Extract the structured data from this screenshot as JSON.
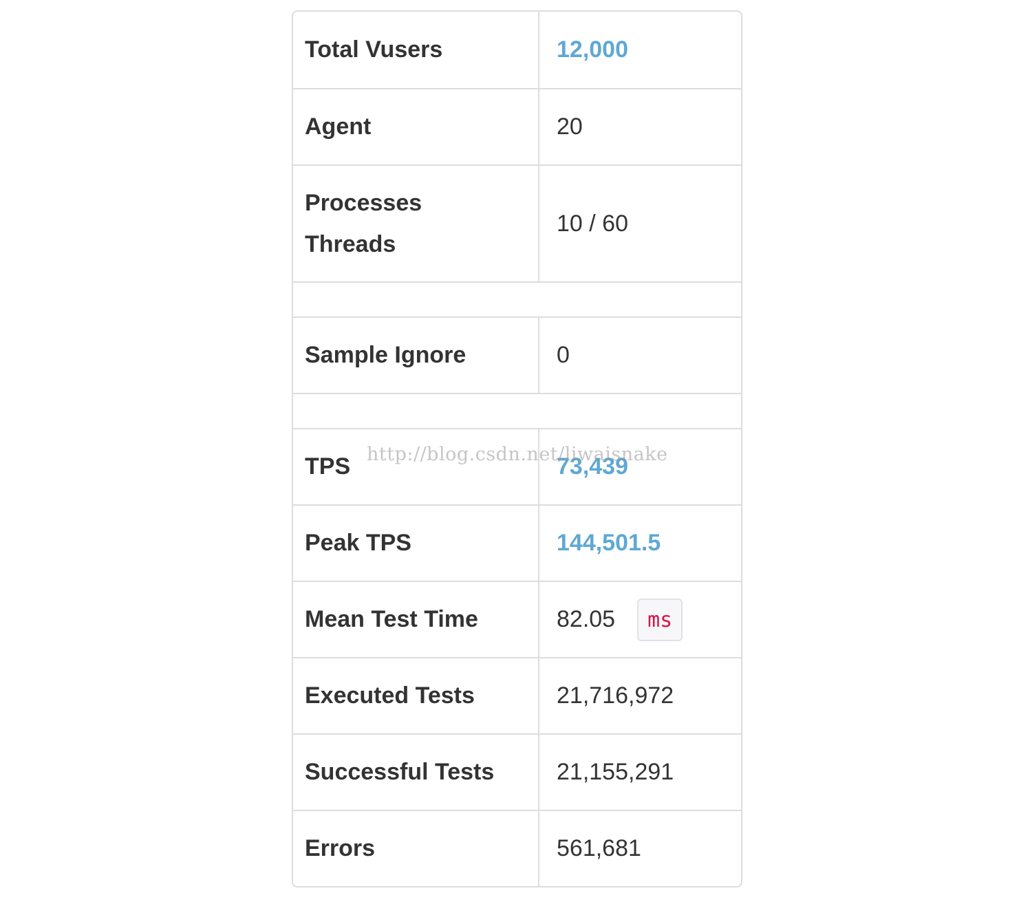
{
  "rows": {
    "total_vusers": {
      "label": "Total Vusers",
      "value": "12,000"
    },
    "agent": {
      "label": "Agent",
      "value": "20"
    },
    "processes_threads": {
      "label_line1": "Processes",
      "label_line2": "Threads",
      "value": "10 / 60"
    },
    "sample_ignore": {
      "label": "Sample Ignore",
      "value": "0"
    },
    "tps": {
      "label": "TPS",
      "value": "73,439"
    },
    "peak_tps": {
      "label": "Peak TPS",
      "value": "144,501.5"
    },
    "mean_test_time": {
      "label": "Mean Test Time",
      "value": "82.05",
      "unit": "ms"
    },
    "executed_tests": {
      "label": "Executed Tests",
      "value": "21,716,972"
    },
    "successful_tests": {
      "label": "Successful Tests",
      "value": "21,155,291"
    },
    "errors": {
      "label": "Errors",
      "value": "561,681"
    }
  },
  "watermark": "http://blog.csdn.net/liwaisnake",
  "colors": {
    "highlight_value": "#5fa8d3",
    "unit_text": "#dd1144",
    "border": "#dddddd",
    "text": "#333333"
  }
}
